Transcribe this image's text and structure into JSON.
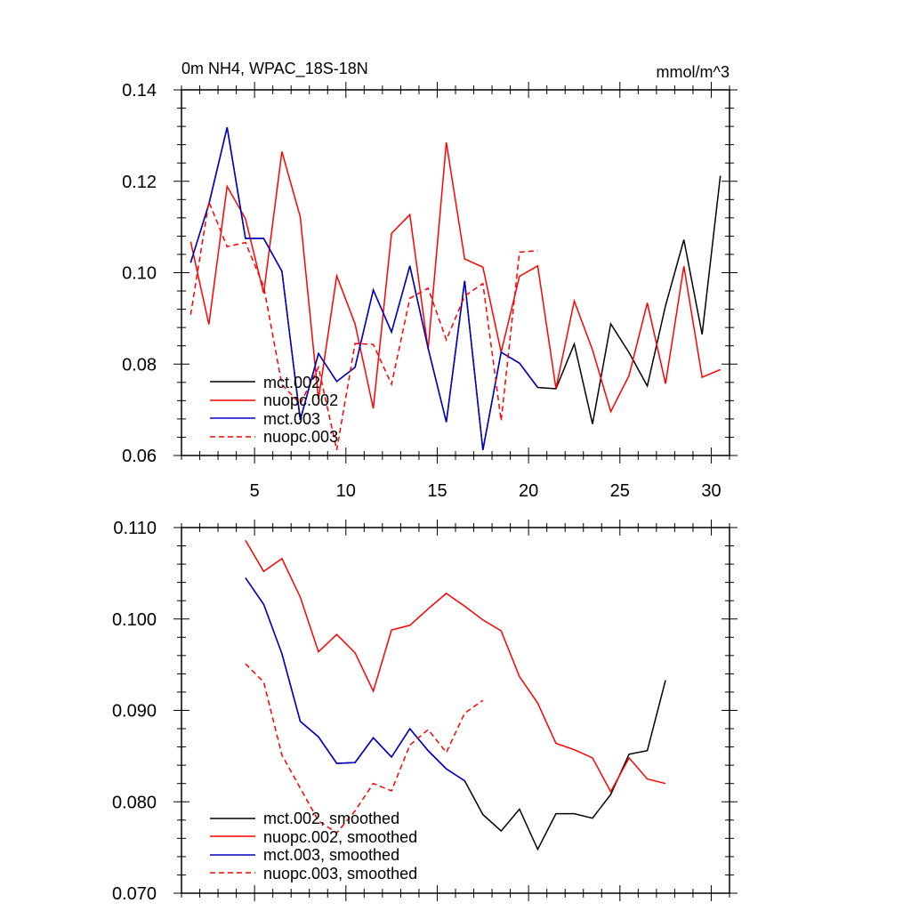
{
  "chart_data": [
    {
      "type": "line",
      "title": "0m NH4, WPAC_18S-18N",
      "units": "mmol/m^3",
      "xlabel": "",
      "ylabel": "",
      "xlim": [
        1,
        31
      ],
      "ylim": [
        0.06,
        0.14
      ],
      "x_ticks": [
        5,
        10,
        15,
        20,
        25,
        30
      ],
      "x_tick_labels": [
        "5",
        "10",
        "15",
        "20",
        "25",
        "30"
      ],
      "y_ticks": [
        0.06,
        0.08,
        0.1,
        0.12,
        0.14
      ],
      "y_tick_labels": [
        "0.06",
        "0.08",
        "0.10",
        "0.12",
        "0.14"
      ],
      "legend_position": "bottom-left",
      "series": [
        {
          "name": "mct.002",
          "color": "#000000",
          "dash": "solid",
          "x": [
            1.5,
            2.5,
            3.5,
            4.5,
            5.5,
            6.5,
            7.5,
            8.5,
            9.5,
            10.5,
            11.5,
            12.5,
            13.5,
            14.5,
            15.5,
            16.5,
            17.5,
            18.5,
            19.5,
            20.5,
            21.5,
            22.5,
            23.5,
            24.5,
            25.5,
            26.5,
            27.5,
            28.5,
            29.5,
            30.5
          ],
          "values": [
            0.1022,
            0.115,
            0.1318,
            0.1075,
            0.1075,
            0.1003,
            0.0678,
            0.0823,
            0.0762,
            0.0793,
            0.0962,
            0.087,
            0.1015,
            0.0835,
            0.0673,
            0.0982,
            0.0612,
            0.0826,
            0.0802,
            0.0749,
            0.0746,
            0.0844,
            0.0669,
            0.0888,
            0.0825,
            0.0752,
            0.0928,
            0.1072,
            0.0865,
            0.1212
          ]
        },
        {
          "name": "nuopc.002",
          "color": "#ff0000",
          "dash": "solid",
          "x": [
            1.5,
            2.5,
            3.5,
            4.5,
            5.5,
            6.5,
            7.5,
            8.5,
            9.5,
            10.5,
            11.5,
            12.5,
            13.5,
            14.5,
            15.5,
            16.5,
            17.5,
            18.5,
            19.5,
            20.5,
            21.5,
            22.5,
            23.5,
            24.5,
            25.5,
            26.5,
            27.5,
            28.5,
            29.5,
            30.5
          ],
          "values": [
            0.1068,
            0.0887,
            0.1189,
            0.1118,
            0.0955,
            0.1265,
            0.1122,
            0.0723,
            0.0993,
            0.0888,
            0.0703,
            0.1086,
            0.1127,
            0.0832,
            0.1285,
            0.103,
            0.1012,
            0.0826,
            0.0992,
            0.1015,
            0.0747,
            0.0938,
            0.0831,
            0.0696,
            0.0775,
            0.0934,
            0.0757,
            0.1014,
            0.0771,
            0.0788
          ]
        },
        {
          "name": "mct.003",
          "color": "#0000cc",
          "dash": "solid",
          "x": [
            1.5,
            2.5,
            3.5,
            4.5,
            5.5,
            6.5,
            7.5,
            8.5,
            9.5,
            10.5,
            11.5,
            12.5,
            13.5,
            14.5,
            15.5,
            16.5,
            17.5,
            18.5,
            19.5,
            20.5
          ],
          "values": [
            0.1022,
            0.115,
            0.1318,
            0.1075,
            0.1075,
            0.1003,
            0.0678,
            0.0823,
            0.0762,
            0.0793,
            0.0962,
            0.087,
            0.1015,
            0.0835,
            0.0673,
            0.0982,
            0.0612,
            0.0826,
            0.0802,
            0.0749
          ]
        },
        {
          "name": "nuopc.003",
          "color": "#ff0000",
          "dash": "dashed",
          "x": [
            1.5,
            2.5,
            3.5,
            4.5,
            5.5,
            6.5,
            7.5,
            8.5,
            9.5,
            10.5,
            11.5,
            12.5,
            13.5,
            14.5,
            15.5,
            16.5,
            17.5,
            18.5,
            19.5,
            20.5
          ],
          "values": [
            0.0908,
            0.1155,
            0.1057,
            0.1066,
            0.097,
            0.0755,
            0.0713,
            0.0793,
            0.0612,
            0.0845,
            0.0843,
            0.0756,
            0.0944,
            0.0966,
            0.0853,
            0.0949,
            0.0976,
            0.0676,
            0.1045,
            0.1048
          ]
        }
      ]
    },
    {
      "type": "line",
      "title": "",
      "xlabel": "",
      "ylabel": "",
      "xlim": [
        1,
        31
      ],
      "ylim": [
        0.07,
        0.11
      ],
      "x_ticks": [
        5,
        10,
        15,
        20,
        25,
        30
      ],
      "y_ticks": [
        0.07,
        0.08,
        0.09,
        0.1,
        0.11
      ],
      "y_tick_labels": [
        "0.070",
        "0.080",
        "0.090",
        "0.100",
        "0.110"
      ],
      "legend_position": "bottom-left",
      "series": [
        {
          "name": "mct.002, smoothed",
          "color": "#000000",
          "dash": "solid",
          "x": [
            4.5,
            5.5,
            6.5,
            7.5,
            8.5,
            9.5,
            10.5,
            11.5,
            12.5,
            13.5,
            14.5,
            15.5,
            16.5,
            17.5,
            18.5,
            19.5,
            20.5,
            21.5,
            22.5,
            23.5,
            24.5,
            25.5,
            26.5,
            27.5
          ],
          "values": [
            0.1045,
            0.1016,
            0.0962,
            0.0888,
            0.0871,
            0.0842,
            0.0843,
            0.087,
            0.0849,
            0.088,
            0.0856,
            0.0836,
            0.0823,
            0.0786,
            0.0768,
            0.0792,
            0.0748,
            0.0787,
            0.0787,
            0.0782,
            0.0808,
            0.0852,
            0.0856,
            0.0933
          ]
        },
        {
          "name": "nuopc.002, smoothed",
          "color": "#ff0000",
          "dash": "solid",
          "x": [
            4.5,
            5.5,
            6.5,
            7.5,
            8.5,
            9.5,
            10.5,
            11.5,
            12.5,
            13.5,
            14.5,
            15.5,
            16.5,
            17.5,
            18.5,
            19.5,
            20.5,
            21.5,
            22.5,
            23.5,
            24.5,
            25.5,
            26.5,
            27.5
          ],
          "values": [
            0.1086,
            0.1052,
            0.1066,
            0.1024,
            0.0964,
            0.0983,
            0.0963,
            0.0921,
            0.0988,
            0.0993,
            0.1011,
            0.1028,
            0.1014,
            0.0999,
            0.0987,
            0.0937,
            0.0908,
            0.0864,
            0.0857,
            0.0848,
            0.0811,
            0.0848,
            0.0825,
            0.082
          ]
        },
        {
          "name": "mct.003, smoothed",
          "color": "#0000cc",
          "dash": "solid",
          "x": [
            4.5,
            5.5,
            6.5,
            7.5,
            8.5,
            9.5,
            10.5,
            11.5,
            12.5,
            13.5,
            14.5,
            15.5,
            16.5
          ],
          "values": [
            0.1045,
            0.1016,
            0.0962,
            0.0888,
            0.0871,
            0.0842,
            0.0843,
            0.087,
            0.0849,
            0.088,
            0.0856,
            0.0836,
            0.0823
          ]
        },
        {
          "name": "nuopc.003, smoothed",
          "color": "#ff0000",
          "dash": "dashed",
          "x": [
            4.5,
            5.5,
            6.5,
            7.5,
            8.5,
            9.5,
            10.5,
            11.5,
            12.5,
            13.5,
            14.5,
            15.5,
            16.5,
            17.5
          ],
          "values": [
            0.0951,
            0.0931,
            0.0851,
            0.0815,
            0.0779,
            0.0766,
            0.079,
            0.082,
            0.0812,
            0.0862,
            0.0879,
            0.0854,
            0.0897,
            0.0911
          ]
        }
      ]
    }
  ]
}
